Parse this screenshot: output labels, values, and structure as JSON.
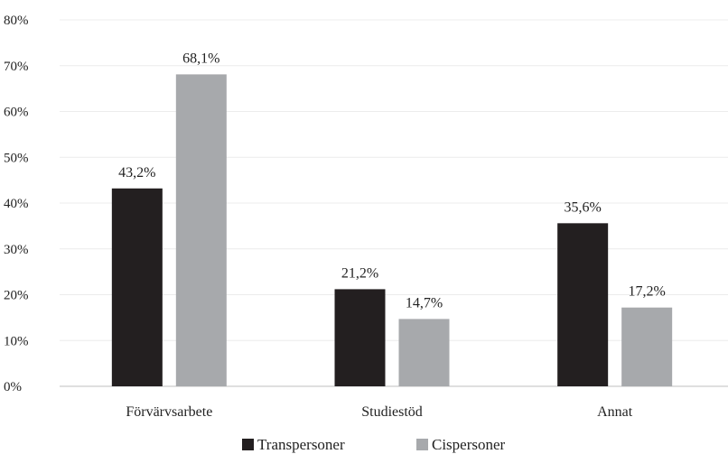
{
  "chart_data": {
    "type": "bar",
    "categories": [
      "Förvärvsarbete",
      "Studiestöd",
      "Annat"
    ],
    "series": [
      {
        "name": "Transpersoner",
        "values": [
          43.2,
          21.2,
          35.6
        ],
        "labels": [
          "43,2%",
          "21,2%",
          "35,6%"
        ],
        "color": "#231f20"
      },
      {
        "name": "Cispersoner",
        "values": [
          68.1,
          14.7,
          17.2
        ],
        "labels": [
          "68,1%",
          "14,7%",
          "17,2%"
        ],
        "color": "#a7a9ac"
      }
    ],
    "ylim": [
      0,
      80
    ],
    "yticks": [
      "0%",
      "10%",
      "20%",
      "30%",
      "40%",
      "50%",
      "60%",
      "70%",
      "80%"
    ],
    "ytick_values": [
      0,
      10,
      20,
      30,
      40,
      50,
      60,
      70,
      80
    ],
    "grid": true,
    "legend_position": "bottom-center",
    "title": "",
    "xlabel": "",
    "ylabel": ""
  }
}
